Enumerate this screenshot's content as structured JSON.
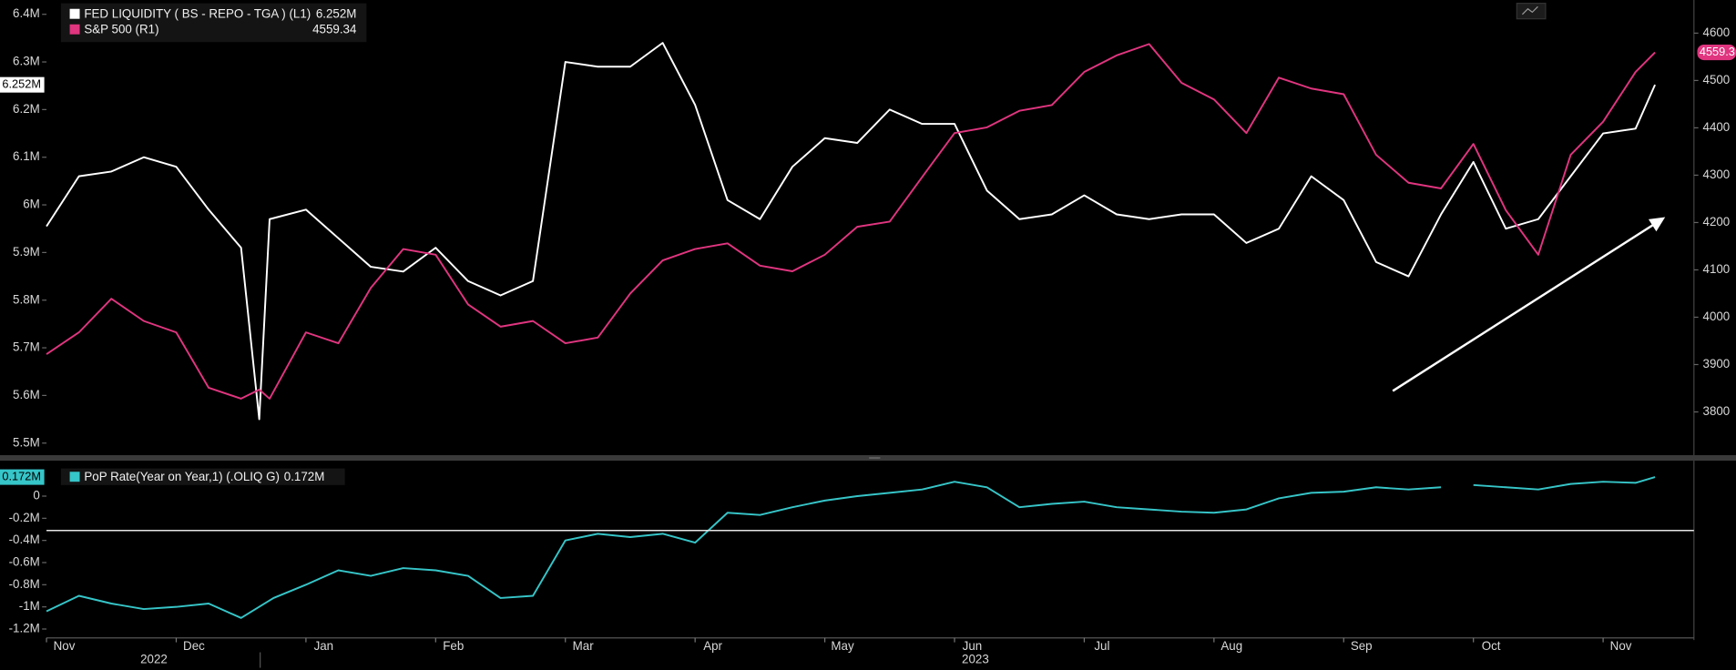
{
  "chart_data": [
    {
      "type": "line",
      "x": [
        0,
        0.25,
        0.5,
        0.75,
        1,
        1.25,
        1.5,
        1.64,
        1.72,
        2,
        2.25,
        2.5,
        2.75,
        3,
        3.25,
        3.5,
        3.75,
        4,
        4.25,
        4.5,
        4.75,
        5,
        5.25,
        5.5,
        5.75,
        6,
        6.25,
        6.5,
        6.75,
        7,
        7.25,
        7.5,
        7.75,
        8,
        8.25,
        8.5,
        8.75,
        9,
        9.25,
        9.5,
        9.75,
        10,
        10.25,
        10.5,
        10.75,
        11,
        11.25,
        11.5,
        11.75,
        12,
        12.25,
        12.4
      ],
      "xlim": [
        0,
        12.7
      ],
      "ylim": [
        5.477,
        6.43
      ],
      "yticks": [
        {
          "value": 5.5,
          "label": "5.5M"
        },
        {
          "value": 5.6,
          "label": "5.6M"
        },
        {
          "value": 5.7,
          "label": "5.7M"
        },
        {
          "value": 5.8,
          "label": "5.8M"
        },
        {
          "value": 5.9,
          "label": "5.9M"
        },
        {
          "value": 6,
          "label": "6M"
        },
        {
          "value": 6.1,
          "label": "6.1M"
        },
        {
          "value": 6.2,
          "label": "6.2M"
        },
        {
          "value": 6.3,
          "label": "6.3M"
        },
        {
          "value": 6.4,
          "label": "6.4M"
        }
      ],
      "y2lim": [
        3711,
        4670
      ],
      "y2ticks": [
        3800,
        3900,
        4000,
        4100,
        4200,
        4300,
        4400,
        4500,
        4600
      ],
      "series": [
        {
          "name": "FED LIQUIDITY ( BS - REPO - TGA ) (L1)",
          "legend_value": "6.252M",
          "last_label": "6.252M",
          "color": "#ffffff",
          "axis": "y",
          "values": [
            5.955,
            6.06,
            6.07,
            6.1,
            6.08,
            5.99,
            5.91,
            5.55,
            5.97,
            5.99,
            5.93,
            5.87,
            5.86,
            5.91,
            5.84,
            5.81,
            5.84,
            6.3,
            6.29,
            6.29,
            6.34,
            6.21,
            6.01,
            5.97,
            6.08,
            6.14,
            6.13,
            6.2,
            6.17,
            6.17,
            6.03,
            5.97,
            5.98,
            6.02,
            5.98,
            5.97,
            5.98,
            5.98,
            5.92,
            5.95,
            6.06,
            6.01,
            5.88,
            5.85,
            5.98,
            6.09,
            5.95,
            5.97,
            6.06,
            6.15,
            6.16,
            6.252
          ]
        },
        {
          "name": "S&P 500  (R1)",
          "legend_value": "4559.34",
          "last_label": "4559.3",
          "color": "#e0357f",
          "axis": "y2",
          "values": [
            3922,
            3968,
            4039,
            3992,
            3968,
            3851,
            3828,
            3847,
            3828,
            3968,
            3945,
            4062,
            4144,
            4132,
            4027,
            3980,
            3992,
            3945,
            3957,
            4050,
            4120,
            4144,
            4156,
            4109,
            4097,
            4132,
            4191,
            4202,
            4296,
            4389,
            4401,
            4436,
            4448,
            4518,
            4553,
            4577,
            4495,
            4460,
            4389,
            4506,
            4483,
            4471,
            4343,
            4284,
            4272,
            4366,
            4226,
            4132,
            4343,
            4413,
            4518,
            4559.34
          ]
        }
      ]
    },
    {
      "type": "line",
      "x": [
        0,
        0.25,
        0.5,
        0.75,
        1,
        1.25,
        1.5,
        1.75,
        2,
        2.25,
        2.5,
        2.75,
        3,
        3.25,
        3.5,
        3.75,
        4,
        4.25,
        4.5,
        4.75,
        5,
        5.25,
        5.5,
        5.75,
        6,
        6.25,
        6.5,
        6.75,
        7,
        7.25,
        7.5,
        7.75,
        8,
        8.25,
        8.5,
        8.75,
        9,
        9.25,
        9.5,
        9.75,
        10,
        10.25,
        10.5,
        10.75,
        10.9,
        11,
        11.25,
        11.5,
        11.75,
        12,
        12.25,
        12.4
      ],
      "xlim": [
        0,
        12.7
      ],
      "xticks": [
        {
          "value": 0,
          "label": "Nov"
        },
        {
          "value": 1,
          "label": "Dec"
        },
        {
          "value": 2,
          "label": "Jan"
        },
        {
          "value": 3,
          "label": "Feb"
        },
        {
          "value": 4,
          "label": "Mar"
        },
        {
          "value": 5,
          "label": "Apr"
        },
        {
          "value": 6,
          "label": "May"
        },
        {
          "value": 7,
          "label": "Jun"
        },
        {
          "value": 8,
          "label": "Jul"
        },
        {
          "value": 9,
          "label": "Aug"
        },
        {
          "value": 10,
          "label": "Sep"
        },
        {
          "value": 11,
          "label": "Oct"
        },
        {
          "value": 12,
          "label": "Nov"
        }
      ],
      "x_year_labels": [
        "2022",
        "2023"
      ],
      "ylim": [
        -1.27,
        0.3
      ],
      "yticks": [
        {
          "value": -1.2,
          "label": "-1.2M"
        },
        {
          "value": -1,
          "label": "-1M"
        },
        {
          "value": -0.8,
          "label": "-0.8M"
        },
        {
          "value": -0.6,
          "label": "-0.6M"
        },
        {
          "value": -0.4,
          "label": "-0.4M"
        },
        {
          "value": -0.2,
          "label": "-0.2M"
        },
        0
      ],
      "hline": -0.31,
      "series": [
        {
          "name": "PoP Rate(Year on Year,1) (.OLIQ G)",
          "legend_value": "0.172M",
          "last_label": "0.172M",
          "color": "#36c5c8",
          "axis": "y",
          "values": [
            -1.04,
            -0.9,
            -0.97,
            -1.02,
            -1.0,
            -0.97,
            -1.1,
            -0.92,
            -0.8,
            -0.67,
            -0.72,
            -0.65,
            -0.67,
            -0.72,
            -0.92,
            -0.9,
            -0.4,
            -0.34,
            -0.37,
            -0.34,
            -0.42,
            -0.15,
            -0.17,
            -0.1,
            -0.04,
            0,
            0.03,
            0.06,
            0.13,
            0.08,
            -0.1,
            -0.07,
            -0.05,
            -0.1,
            -0.12,
            -0.14,
            -0.15,
            -0.12,
            -0.02,
            0.03,
            0.04,
            0.08,
            0.06,
            0.08,
            null,
            0.1,
            0.08,
            0.06,
            0.11,
            0.13,
            0.12,
            0.172
          ]
        }
      ]
    }
  ]
}
